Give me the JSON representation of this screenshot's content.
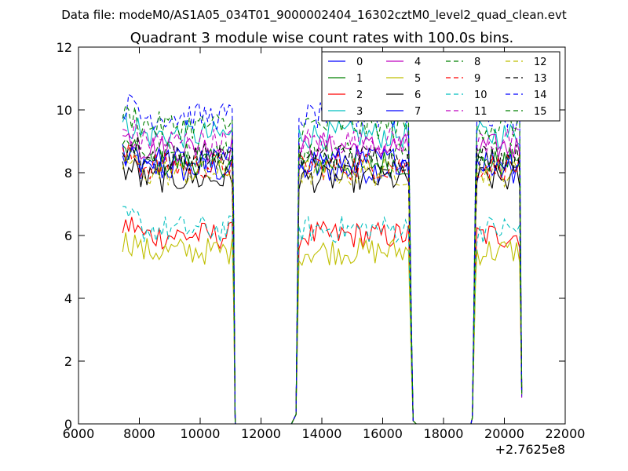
{
  "figure": {
    "suptitle": "Data file: modeM0/AS1A05_034T01_9000002404_16302cztM0_level2_quad_clean.evt"
  },
  "chart_data": {
    "type": "line",
    "title": "Quadrant 3 module wise count rates with 100.0s bins.",
    "xlabel": "",
    "ylabel": "",
    "x_offset_label": "+2.7625e8",
    "xlim": [
      6000,
      22000
    ],
    "ylim": [
      0,
      12
    ],
    "x_ticks": [
      6000,
      8000,
      10000,
      12000,
      14000,
      16000,
      18000,
      20000,
      22000
    ],
    "y_ticks": [
      0,
      2,
      4,
      6,
      8,
      10,
      12
    ],
    "grid": false,
    "legend_position": "top-right",
    "segments": [
      {
        "start": 7450,
        "end": 11050,
        "fall_end": 11150
      },
      {
        "start": 13150,
        "end": 16900,
        "rise_start": 13150,
        "fall_end": 17000
      },
      {
        "start": 19050,
        "end": 20550,
        "rise_start": 18950
      }
    ],
    "series": [
      {
        "name": "0",
        "color": "#0000ff",
        "dash": false,
        "level": 8.1
      },
      {
        "name": "1",
        "color": "#008000",
        "dash": false,
        "level": 8.3
      },
      {
        "name": "2",
        "color": "#ff0000",
        "dash": false,
        "level": 6.0
      },
      {
        "name": "3",
        "color": "#00bfbf",
        "dash": false,
        "level": 9.2
      },
      {
        "name": "4",
        "color": "#bf00bf",
        "dash": false,
        "level": 8.8
      },
      {
        "name": "5",
        "color": "#bfbf00",
        "dash": false,
        "level": 5.5
      },
      {
        "name": "6",
        "color": "#000000",
        "dash": false,
        "level": 7.8
      },
      {
        "name": "7",
        "color": "#0000ff",
        "dash": false,
        "level": 8.4
      },
      {
        "name": "8",
        "color": "#008000",
        "dash": true,
        "level": 8.6
      },
      {
        "name": "9",
        "color": "#ff0000",
        "dash": true,
        "level": 8.2
      },
      {
        "name": "10",
        "color": "#00bfbf",
        "dash": true,
        "level": 6.2
      },
      {
        "name": "11",
        "color": "#bf00bf",
        "dash": true,
        "level": 9.0
      },
      {
        "name": "12",
        "color": "#bfbf00",
        "dash": true,
        "level": 8.0
      },
      {
        "name": "13",
        "color": "#000000",
        "dash": true,
        "level": 8.5
      },
      {
        "name": "14",
        "color": "#0000ff",
        "dash": true,
        "level": 9.8
      },
      {
        "name": "15",
        "color": "#008000",
        "dash": true,
        "level": 9.5
      }
    ]
  }
}
